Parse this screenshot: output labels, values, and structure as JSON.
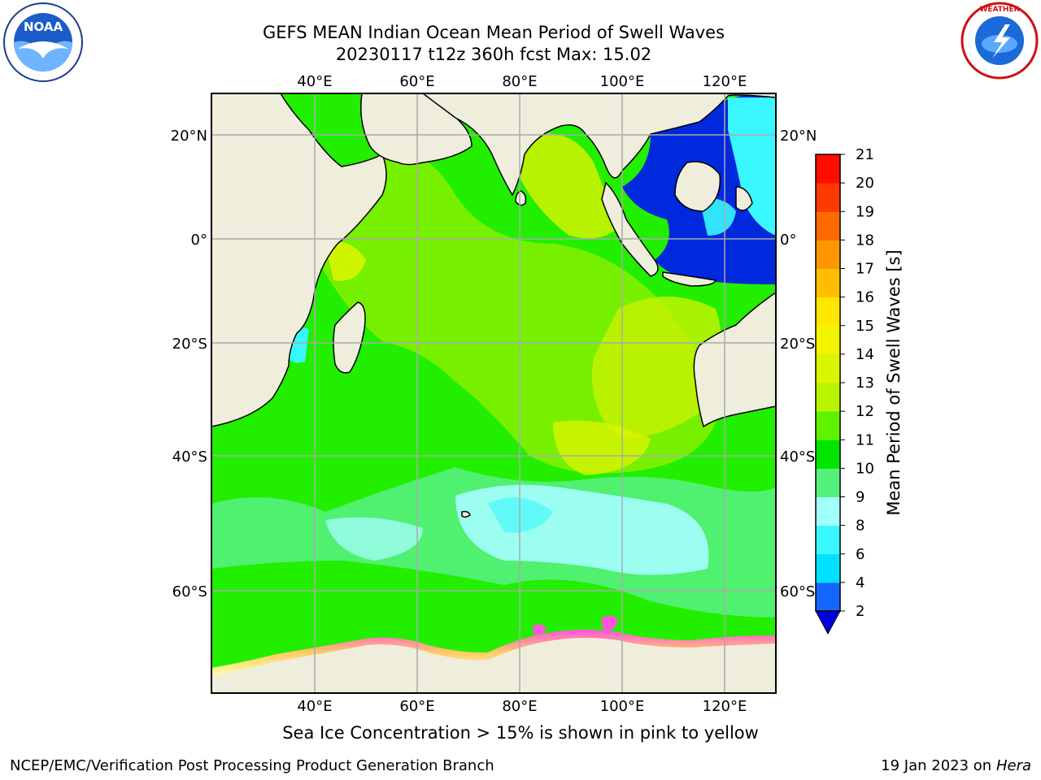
{
  "title": {
    "line1": "GEFS MEAN Indian Ocean Mean Period of Swell Waves",
    "line2": "20230117 t12z 360h fcst   Max: 15.02"
  },
  "logos": {
    "left": "NOAA",
    "right": "National Weather Service"
  },
  "map": {
    "lon_ticks": [
      "40°E",
      "60°E",
      "80°E",
      "100°E",
      "120°E"
    ],
    "lat_ticks": [
      "20°N",
      "0°",
      "20°S",
      "40°S",
      "60°S"
    ],
    "grid": true,
    "colors": {
      "land": "#efeedd",
      "ice_edge": "#ff55dd",
      "ocean_default": "#22ee00"
    }
  },
  "colorbar": {
    "label": "Mean Period of Swell Waves [s]",
    "ticks": [
      "2",
      "4",
      "6",
      "8",
      "9",
      "10",
      "11",
      "12",
      "13",
      "14",
      "15",
      "16",
      "17",
      "18",
      "19",
      "20",
      "21"
    ],
    "colors": [
      "#1466ff",
      "#00e0ff",
      "#39f7ff",
      "#a4ffff",
      "#55f07c",
      "#00e400",
      "#5ff200",
      "#b8f400",
      "#d9f500",
      "#f4f400",
      "#ffe800",
      "#ffbf00",
      "#ff9600",
      "#ff6a00",
      "#ff3a00",
      "#ff0e00"
    ],
    "extend_color": "#0000dd"
  },
  "caption": "Sea Ice Concentration > 15% is shown in pink to yellow",
  "footer": {
    "left": "NCEP/EMC/Verification Post Processing Product Generation Branch",
    "date": "19 Jan 2023 on ",
    "machine": "Hera"
  }
}
